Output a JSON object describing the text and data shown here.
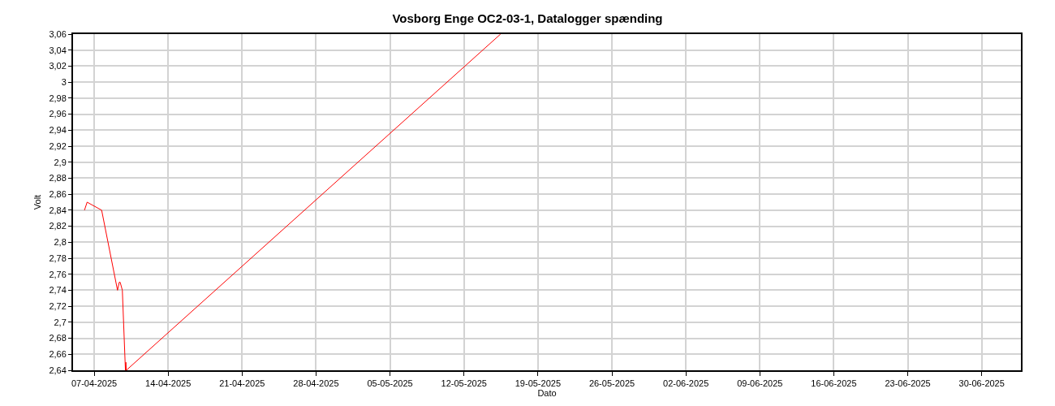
{
  "chart_data": {
    "type": "line",
    "title": "Vosborg Enge OC2-03-1, Datalogger spænding",
    "xlabel": "Dato",
    "ylabel": "Volt",
    "x": [
      "2025-04-06T02:00",
      "2025-04-06T08:00",
      "2025-04-07T17:00",
      "2025-04-09T05:00",
      "2025-04-09T09:00",
      "2025-04-09T11:00",
      "2025-04-09T16:00",
      "2025-04-09T23:00",
      "2025-04-10T00:00",
      "2025-04-10T01:00",
      "2025-05-15T11:00"
    ],
    "series": [
      {
        "color": "#ff0000",
        "values": [
          2.84,
          2.85,
          2.84,
          2.74,
          2.75,
          2.75,
          2.74,
          2.64,
          2.65,
          2.64,
          3.06
        ]
      }
    ],
    "xlim": [
      "2025-04-05",
      "2025-07-03T17:00"
    ],
    "xticks": [
      {
        "value": "2025-04-07",
        "label": "07-04-2025"
      },
      {
        "value": "2025-04-14",
        "label": "14-04-2025"
      },
      {
        "value": "2025-04-21",
        "label": "21-04-2025"
      },
      {
        "value": "2025-04-28",
        "label": "28-04-2025"
      },
      {
        "value": "2025-05-05",
        "label": "05-05-2025"
      },
      {
        "value": "2025-05-12",
        "label": "12-05-2025"
      },
      {
        "value": "2025-05-19",
        "label": "19-05-2025"
      },
      {
        "value": "2025-05-26",
        "label": "26-05-2025"
      },
      {
        "value": "2025-06-02",
        "label": "02-06-2025"
      },
      {
        "value": "2025-06-09",
        "label": "09-06-2025"
      },
      {
        "value": "2025-06-16",
        "label": "16-06-2025"
      },
      {
        "value": "2025-06-23",
        "label": "23-06-2025"
      },
      {
        "value": "2025-06-30",
        "label": "30-06-2025"
      }
    ],
    "ylim": [
      2.64,
      3.06
    ],
    "yticks": [
      {
        "value": 2.64,
        "label": "2,64"
      },
      {
        "value": 2.66,
        "label": "2,66"
      },
      {
        "value": 2.68,
        "label": "2,68"
      },
      {
        "value": 2.7,
        "label": "2,7"
      },
      {
        "value": 2.72,
        "label": "2,72"
      },
      {
        "value": 2.74,
        "label": "2,74"
      },
      {
        "value": 2.76,
        "label": "2,76"
      },
      {
        "value": 2.78,
        "label": "2,78"
      },
      {
        "value": 2.8,
        "label": "2,8"
      },
      {
        "value": 2.82,
        "label": "2,82"
      },
      {
        "value": 2.84,
        "label": "2,84"
      },
      {
        "value": 2.86,
        "label": "2,86"
      },
      {
        "value": 2.88,
        "label": "2,88"
      },
      {
        "value": 2.9,
        "label": "2,9"
      },
      {
        "value": 2.92,
        "label": "2,92"
      },
      {
        "value": 2.94,
        "label": "2,94"
      },
      {
        "value": 2.96,
        "label": "2,96"
      },
      {
        "value": 2.98,
        "label": "2,98"
      },
      {
        "value": 3,
        "label": "3"
      },
      {
        "value": 3.02,
        "label": "3,02"
      },
      {
        "value": 3.04,
        "label": "3,04"
      },
      {
        "value": 3.06,
        "label": "3,06"
      }
    ],
    "grid": true,
    "marker": "none",
    "line_style": "solid"
  }
}
